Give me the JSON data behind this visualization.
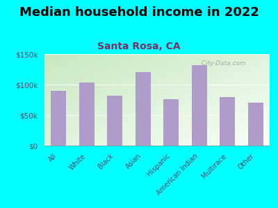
{
  "title": "Median household income in 2022",
  "subtitle": "Santa Rosa, CA",
  "categories": [
    "All",
    "White",
    "Black",
    "Asian",
    "Hispanic",
    "American Indian",
    "Multirace",
    "Other"
  ],
  "values": [
    90000,
    103000,
    82000,
    120000,
    76000,
    132000,
    79000,
    70000
  ],
  "bar_color": "#b09cc8",
  "background_color": "#00FFFF",
  "plot_bg_topleft": "#c8e8c0",
  "plot_bg_bottomright": "#f8fff8",
  "title_fontsize": 13,
  "subtitle_fontsize": 10,
  "subtitle_color": "#7a3060",
  "tick_label_color": "#4a4a6a",
  "ylim": [
    0,
    150000
  ],
  "yticks": [
    0,
    50000,
    100000,
    150000
  ],
  "ytick_labels": [
    "$0",
    "$50k",
    "$100k",
    "$150k"
  ],
  "watermark": "  City-Data.com"
}
